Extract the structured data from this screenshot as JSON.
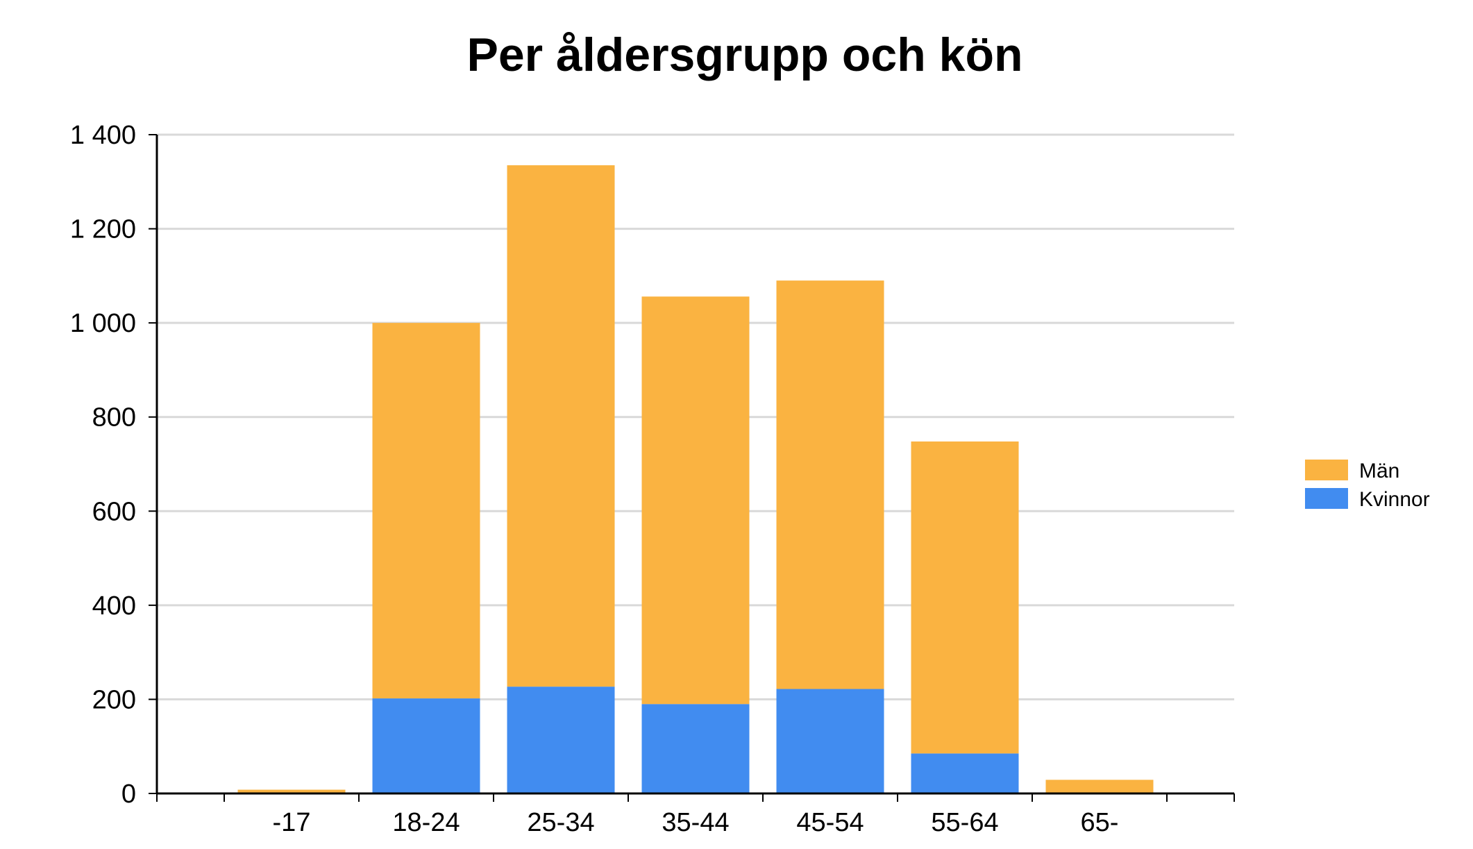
{
  "chart_data": {
    "type": "bar",
    "stacked": true,
    "title": "Per åldersgrupp och kön",
    "xlabel": "",
    "ylabel": "",
    "categories": [
      "-17",
      "18-24",
      "25-34",
      "35-44",
      "45-54",
      "55-64",
      "65-"
    ],
    "series": [
      {
        "name": "Kvinnor",
        "color": "#418cf0",
        "values": [
          0,
          202,
          227,
          190,
          222,
          85,
          0
        ]
      },
      {
        "name": "Män",
        "color": "#fab341",
        "values": [
          8,
          798,
          1108,
          866,
          868,
          663,
          29
        ]
      }
    ],
    "ylim": [
      0,
      1400
    ],
    "yticks": [
      0,
      200,
      400,
      600,
      800,
      1000,
      1200,
      1400
    ],
    "ytick_labels": [
      "0",
      "200",
      "400",
      "600",
      "800",
      "1 000",
      "1 200",
      "1 400"
    ],
    "grid": true,
    "legend": {
      "position": "right",
      "entries": [
        {
          "name": "Män",
          "color": "#fab341"
        },
        {
          "name": "Kvinnor",
          "color": "#418cf0"
        }
      ]
    }
  }
}
